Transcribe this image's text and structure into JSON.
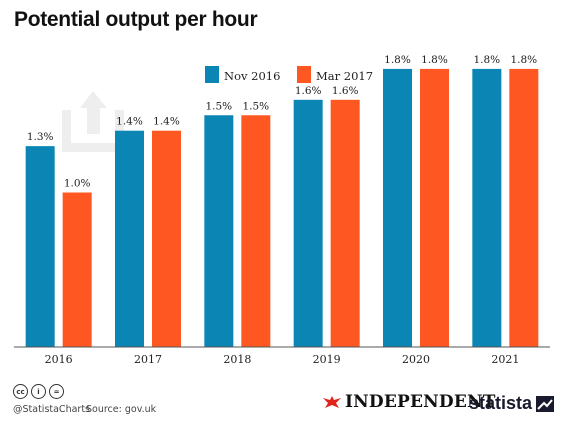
{
  "title": "Potential output per hour",
  "chart_data": {
    "type": "bar",
    "categories": [
      "2016",
      "2017",
      "2018",
      "2019",
      "2020",
      "2021"
    ],
    "series": [
      {
        "name": "Nov 2016",
        "color": "#0a85b4",
        "values": [
          1.3,
          1.4,
          1.5,
          1.6,
          1.8,
          1.8
        ],
        "labels": [
          "1.3%",
          "1.4%",
          "1.5%",
          "1.6%",
          "1.8%",
          "1.8%"
        ]
      },
      {
        "name": "Mar 2017",
        "color": "#ff5722",
        "values": [
          1.0,
          1.4,
          1.5,
          1.6,
          1.8,
          1.8
        ],
        "labels": [
          "1.0%",
          "1.4%",
          "1.5%",
          "1.6%",
          "1.8%",
          "1.8%"
        ]
      }
    ],
    "ylim": [
      0,
      2.0
    ],
    "grid": false,
    "legend": "top-center"
  },
  "footer": {
    "handle": "@StatistaCharts",
    "source": "Source: gov.uk",
    "publisher": "INDEPENDENT",
    "brand": "statista"
  }
}
